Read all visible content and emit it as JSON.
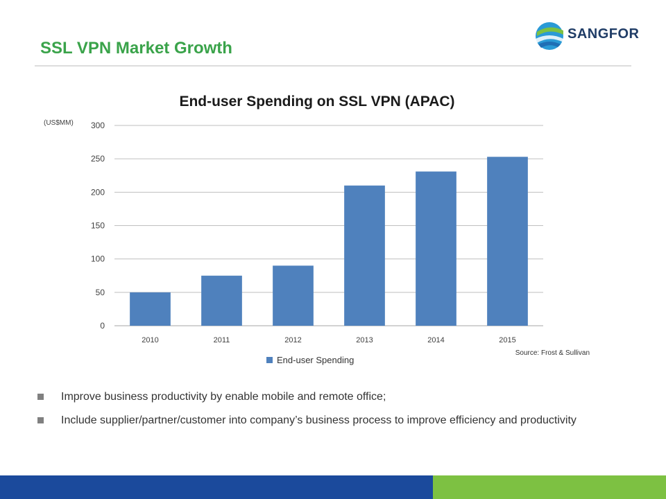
{
  "slide": {
    "title": "SSL VPN Market Growth"
  },
  "logo": {
    "text": "SANGFOR",
    "icon": "sangfor-globe-icon"
  },
  "colors": {
    "title": "#3aa34a",
    "bar": "#4f81bd",
    "footer_blue": "#1b4a9c",
    "footer_green": "#7dc142"
  },
  "chart_data": {
    "type": "bar",
    "title": "End-user Spending on SSL VPN (APAC)",
    "unit_label": "(US$MM)",
    "categories": [
      "2010",
      "2011",
      "2012",
      "2013",
      "2014",
      "2015"
    ],
    "series": [
      {
        "name": "End-user Spending",
        "values": [
          50,
          75,
          90,
          210,
          231,
          253
        ]
      }
    ],
    "ylim": [
      0,
      300
    ],
    "yticks": [
      0,
      50,
      100,
      150,
      200,
      250,
      300
    ],
    "grid": true,
    "legend": "bottom",
    "source": "Source:  Frost & Sullivan"
  },
  "bullets": [
    {
      "text": "Improve business productivity by enable mobile and remote office;"
    },
    {
      "text": "Include supplier/partner/customer into company’s business process to improve efficiency and productivity"
    }
  ]
}
